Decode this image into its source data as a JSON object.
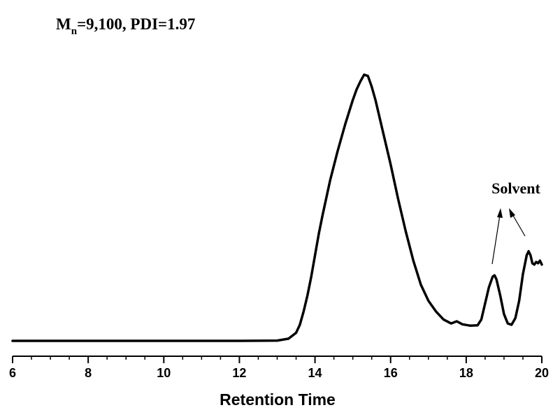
{
  "chart_data": {
    "type": "line",
    "title": {
      "prefix": "M",
      "subscript": "n",
      "suffix": "=9,100, PDI=1.97"
    },
    "xlabel": "Retention Time",
    "ylabel": "",
    "xlim": [
      6,
      20
    ],
    "ylim": [
      0,
      1
    ],
    "x_ticks": [
      6,
      8,
      10,
      12,
      14,
      16,
      18,
      20
    ],
    "x_tick_labels": [
      "6",
      "8",
      "10",
      "12",
      "14",
      "16",
      "18",
      "20"
    ],
    "y_axis_shown": false,
    "grid": false,
    "series": [
      {
        "color": "#000000",
        "x": [
          6.0,
          8.0,
          10.0,
          12.0,
          13.0,
          13.3,
          13.5,
          13.6,
          13.7,
          13.8,
          13.9,
          14.0,
          14.1,
          14.2,
          14.4,
          14.6,
          14.8,
          15.0,
          15.1,
          15.2,
          15.3,
          15.4,
          15.5,
          15.6,
          15.7,
          15.8,
          16.0,
          16.2,
          16.4,
          16.6,
          16.8,
          17.0,
          17.2,
          17.4,
          17.6,
          17.75,
          17.9,
          18.1,
          18.3,
          18.4,
          18.5,
          18.6,
          18.7,
          18.75,
          18.8,
          18.9,
          19.0,
          19.1,
          19.2,
          19.3,
          19.4,
          19.5,
          19.6,
          19.65,
          19.7,
          19.75,
          19.8,
          19.85,
          19.9,
          19.95,
          20.0
        ],
        "y": [
          0.0,
          0.0,
          0.0,
          0.0,
          0.001,
          0.008,
          0.03,
          0.06,
          0.11,
          0.17,
          0.24,
          0.32,
          0.4,
          0.47,
          0.6,
          0.71,
          0.81,
          0.9,
          0.94,
          0.97,
          0.995,
          0.99,
          0.95,
          0.9,
          0.84,
          0.78,
          0.66,
          0.53,
          0.41,
          0.3,
          0.21,
          0.15,
          0.11,
          0.08,
          0.065,
          0.073,
          0.062,
          0.057,
          0.058,
          0.08,
          0.14,
          0.2,
          0.24,
          0.245,
          0.23,
          0.17,
          0.1,
          0.065,
          0.06,
          0.085,
          0.15,
          0.25,
          0.32,
          0.335,
          0.32,
          0.29,
          0.285,
          0.295,
          0.29,
          0.3,
          0.285
        ]
      }
    ],
    "annotations": [
      {
        "text": "Solvent",
        "points_to_x": [
          18.7,
          19.6
        ]
      }
    ]
  }
}
